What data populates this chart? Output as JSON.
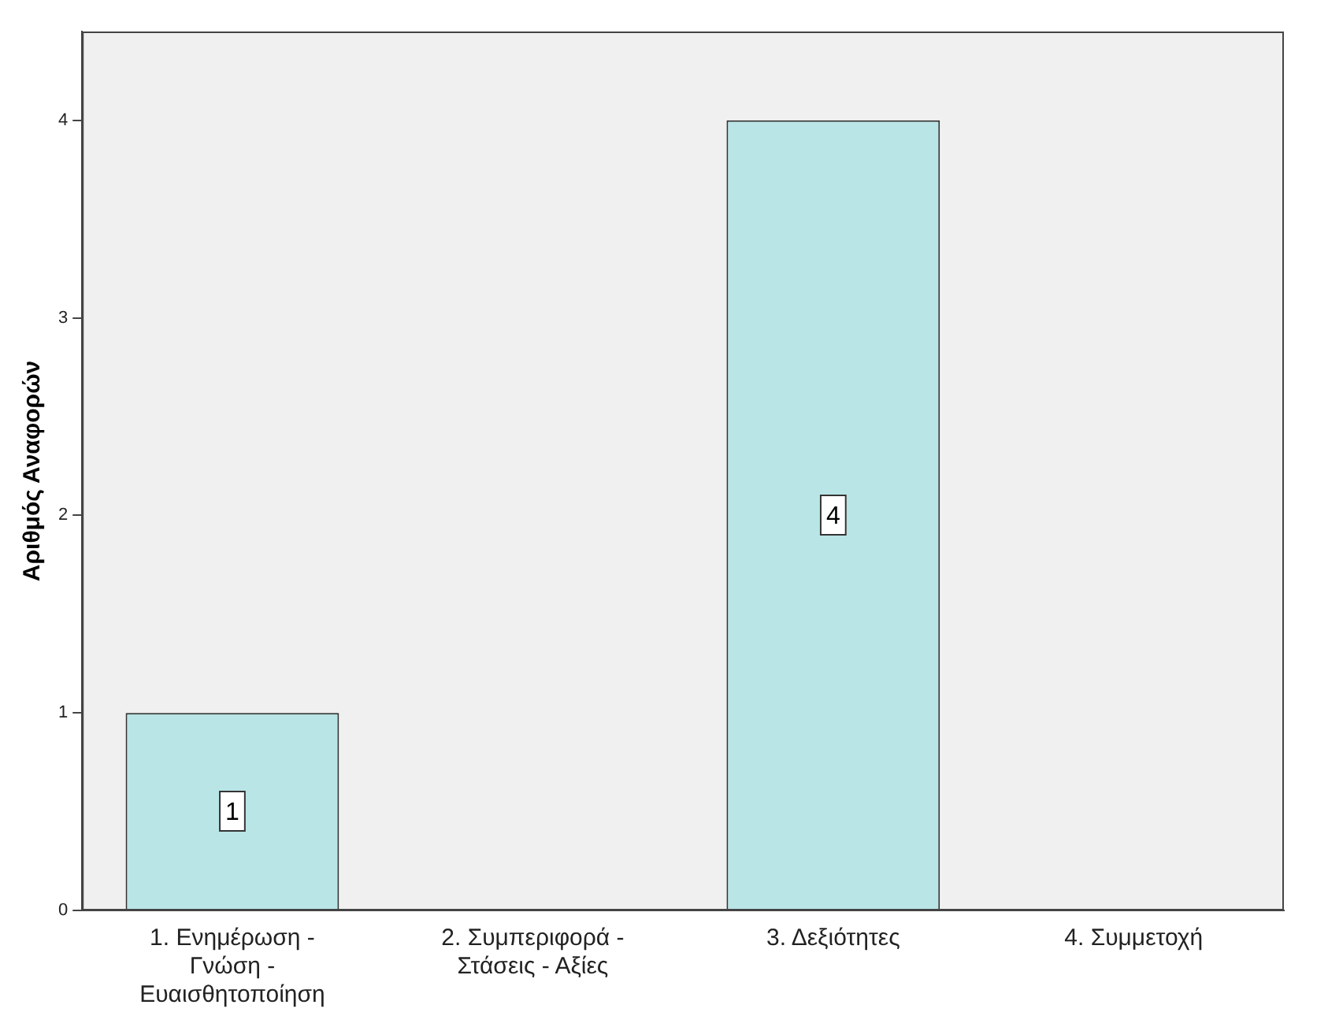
{
  "chart_data": {
    "type": "bar",
    "ylabel": "Αριθμός Αναφορών",
    "categories": [
      "1. Ενημέρωση - Γνώση - Ευαισθητοποίηση",
      "2. Συμπεριφορά - Στάσεις - Αξίες",
      "3. Δεξιότητες",
      "4. Συμμετοχή"
    ],
    "values": [
      1,
      0,
      4,
      0
    ],
    "value_labels": [
      "1",
      null,
      "4",
      null
    ],
    "color": "#b9e5e6",
    "ylim": [
      0,
      4.45
    ],
    "yticks": [
      0,
      1,
      2,
      3,
      4
    ],
    "grid": false,
    "legend": false
  }
}
